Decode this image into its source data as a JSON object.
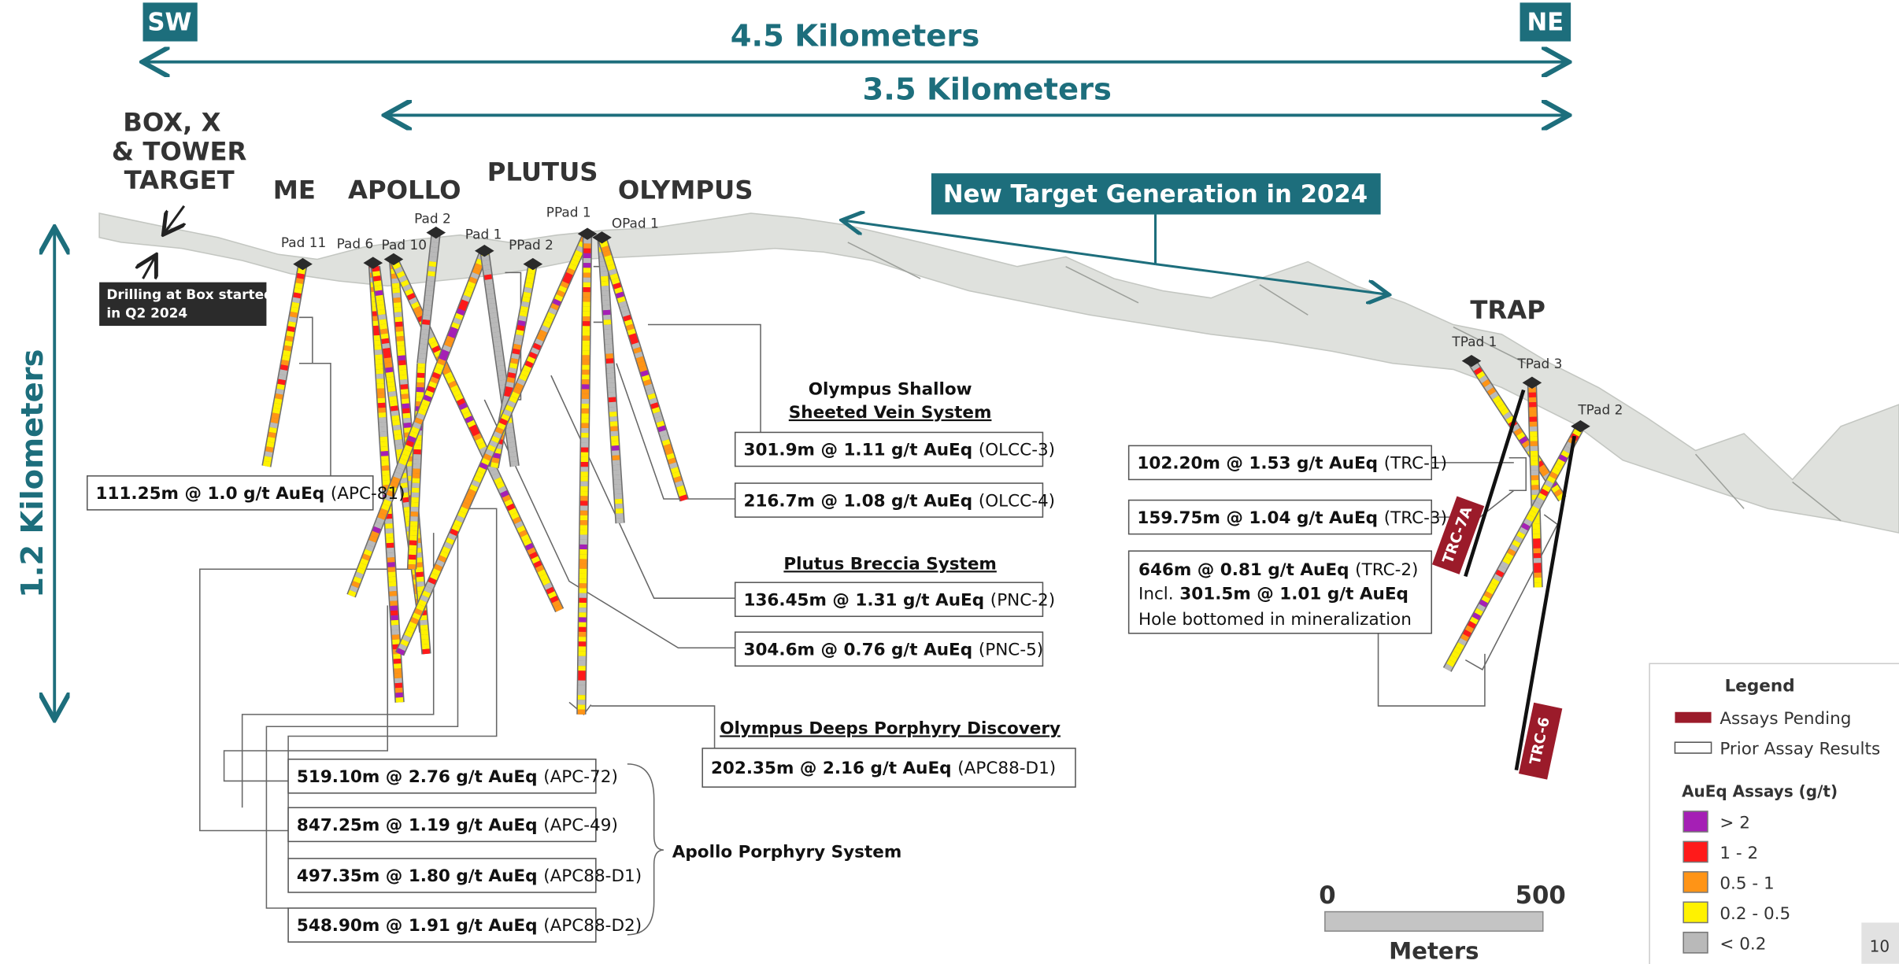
{
  "orientation": {
    "southwest": "SW",
    "northeast": "NE"
  },
  "distances": {
    "total": "4.5 Kilometers",
    "span": "3.5 Kilometers",
    "depth": "1.2 Kilometers"
  },
  "targets": {
    "box": [
      "BOX, X",
      "& TOWER",
      "TARGET"
    ],
    "me": "ME",
    "apollo": "APOLLO",
    "plutus": "PLUTUS",
    "olympus": "OLYMPUS",
    "trap": "TRAP"
  },
  "box_note": [
    "Drilling at Box started",
    "in Q2 2024"
  ],
  "new_target": "New Target Generation in 2024",
  "pads": [
    "Pad 11",
    "Pad 6",
    "Pad 10",
    "Pad 2",
    "Pad 1",
    "PPad 2",
    "PPad 1",
    "OPad 1",
    "TPad 1",
    "TPad 3",
    "TPad 2"
  ],
  "holes": [
    "TRC-7A",
    "TRC-6"
  ],
  "systems": {
    "olympus_shallow": [
      "Olympus Shallow",
      "Sheeted Vein System"
    ],
    "plutus": "Plutus Breccia System",
    "olympus_deeps": "Olympus Deeps Porphyry Discovery",
    "apollo": "Apollo Porphyry System"
  },
  "intercepts": [
    {
      "result": "111.25m @ 1.0 g/t AuEq",
      "hole": "(APC-81)"
    },
    {
      "result": "301.9m @ 1.11 g/t AuEq",
      "hole": "(OLCC-3)"
    },
    {
      "result": "216.7m @ 1.08 g/t AuEq",
      "hole": "(OLCC-4)"
    },
    {
      "result": "136.45m @ 1.31 g/t AuEq",
      "hole": "(PNC-2)"
    },
    {
      "result": "304.6m @ 0.76 g/t AuEq",
      "hole": "(PNC-5)"
    },
    {
      "result": "202.35m @ 2.16 g/t AuEq",
      "hole": "(APC88-D1)"
    },
    {
      "result": "519.10m @ 2.76 g/t AuEq",
      "hole": "(APC-72)"
    },
    {
      "result": "847.25m @ 1.19 g/t AuEq",
      "hole": "(APC-49)"
    },
    {
      "result": "497.35m @ 1.80 g/t AuEq",
      "hole": "(APC88-D1)"
    },
    {
      "result": "548.90m @ 1.91 g/t AuEq",
      "hole": "(APC88-D2)"
    },
    {
      "result": "102.20m @ 1.53 g/t AuEq",
      "hole": "(TRC-1)"
    },
    {
      "result": "159.75m @ 1.04 g/t AuEq",
      "hole": "(TRC-3)"
    }
  ],
  "trc2": {
    "result": "646m @ 0.81 g/t AuEq",
    "hole": "(TRC-2)",
    "incl_prefix": "Incl.",
    "incl": "301.5m @ 1.01 g/t AuEq",
    "note": "Hole bottomed in mineralization"
  },
  "legend": {
    "title": "Legend",
    "pending": "Assays Pending",
    "prior": "Prior Assay Results",
    "assays_title": "AuEq Assays (g/t)",
    "classes": [
      {
        "label": "> 2",
        "color": "#a51fb5"
      },
      {
        "label": "1 - 2",
        "color": "#ff1a1a"
      },
      {
        "label": "0.5 - 1",
        "color": "#ff9416"
      },
      {
        "label": "0.2 - 0.5",
        "color": "#fff200"
      },
      {
        "label": "< 0.2",
        "color": "#b9b9b9"
      }
    ]
  },
  "scale_bar": {
    "start": "0",
    "end": "500",
    "unit": "Meters"
  },
  "page_number": "10"
}
